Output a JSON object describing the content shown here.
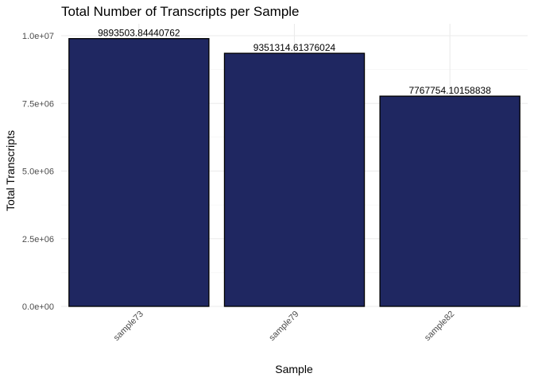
{
  "chart_data": {
    "type": "bar",
    "title": "Total Number of Transcripts per Sample",
    "xlabel": "Sample",
    "ylabel": "Total Transcripts",
    "categories": [
      "sample73",
      "sample79",
      "sample82"
    ],
    "values": [
      9893503.84440762,
      9351314.61376024,
      7767754.10158838
    ],
    "value_labels": [
      "9893503.84440762",
      "9351314.61376024",
      "7767754.10158838"
    ],
    "ylim": [
      0,
      10000000
    ],
    "yticks": [
      0,
      2500000,
      5000000,
      7500000,
      10000000
    ],
    "ytick_labels": [
      "0.0e+00",
      "2.5e+06",
      "5.0e+06",
      "7.5e+06",
      "1.0e+07"
    ],
    "bar_color": "#1f2761",
    "bar_outline": "#000000",
    "grid": true,
    "legend": "none"
  }
}
